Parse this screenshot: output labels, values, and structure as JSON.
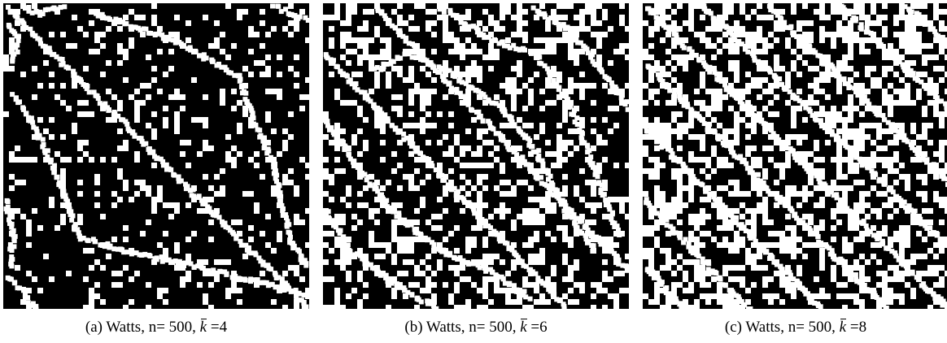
{
  "panels": [
    {
      "id": "a",
      "caption_prefix": "(a) Watts, n= 500, ",
      "k_symbol": "k",
      "caption_suffix": " =4",
      "n": 500,
      "mean_degree": 4
    },
    {
      "id": "b",
      "caption_prefix": "(b) Watts, n= 500, ",
      "k_symbol": "k",
      "caption_suffix": " =6",
      "n": 500,
      "mean_degree": 6
    },
    {
      "id": "c",
      "caption_prefix": "(c) Watts, n= 500, ",
      "k_symbol": "k",
      "caption_suffix": " =8",
      "n": 500,
      "mean_degree": 8
    }
  ],
  "colors": {
    "background": "#000000",
    "points": "#ffffff"
  }
}
